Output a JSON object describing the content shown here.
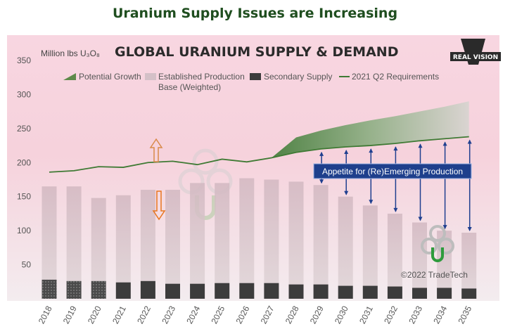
{
  "page_title": "Uranium Supply Issues are Increasing",
  "chart_data": {
    "type": "bar",
    "title": "GLOBAL URANIUM SUPPLY & DEMAND",
    "ylabel": "Million lbs U₃O₈",
    "ylim": [
      0,
      350
    ],
    "yticks": [
      50,
      100,
      150,
      200,
      250,
      300,
      350
    ],
    "categories": [
      "2018",
      "2019",
      "2020",
      "2021",
      "2022",
      "2023",
      "2024",
      "2025",
      "2026",
      "2027",
      "2028",
      "2029",
      "2030",
      "2031",
      "2032",
      "2033",
      "2034",
      "2035"
    ],
    "series": [
      {
        "name": "Secondary Supply",
        "values": [
          28,
          26,
          26,
          24,
          26,
          22,
          22,
          23,
          23,
          23,
          21,
          21,
          19,
          19,
          18,
          16,
          16,
          15
        ]
      },
      {
        "name": "Established Production Base (Weighted)",
        "values": [
          165,
          165,
          148,
          152,
          160,
          160,
          170,
          170,
          177,
          175,
          172,
          167,
          150,
          137,
          125,
          112,
          100,
          97
        ]
      },
      {
        "name": "2021 Q2 Requirements",
        "values": [
          186,
          188,
          194,
          193,
          200,
          202,
          197,
          205,
          201,
          207,
          215,
          220,
          223,
          225,
          228,
          232,
          235,
          238
        ]
      },
      {
        "name": "Potential Growth",
        "values": [
          null,
          null,
          null,
          null,
          null,
          null,
          null,
          null,
          null,
          null,
          237,
          247,
          255,
          262,
          268,
          275,
          282,
          290
        ]
      }
    ],
    "legend": [
      {
        "label": "Potential Growth",
        "color": "#5e8a4a"
      },
      {
        "label": "Established Production\nBase (Weighted)",
        "color": "#d4c0c7"
      },
      {
        "label": "Secondary Supply",
        "color": "#3c3c3c"
      },
      {
        "label": "2021 Q2 Requirements",
        "color": "#3f7a34"
      }
    ],
    "annotation": "Appetite for (Re)Emerging Production",
    "brand": "REAL VISION",
    "copyright": "©2022 TradeTech"
  }
}
